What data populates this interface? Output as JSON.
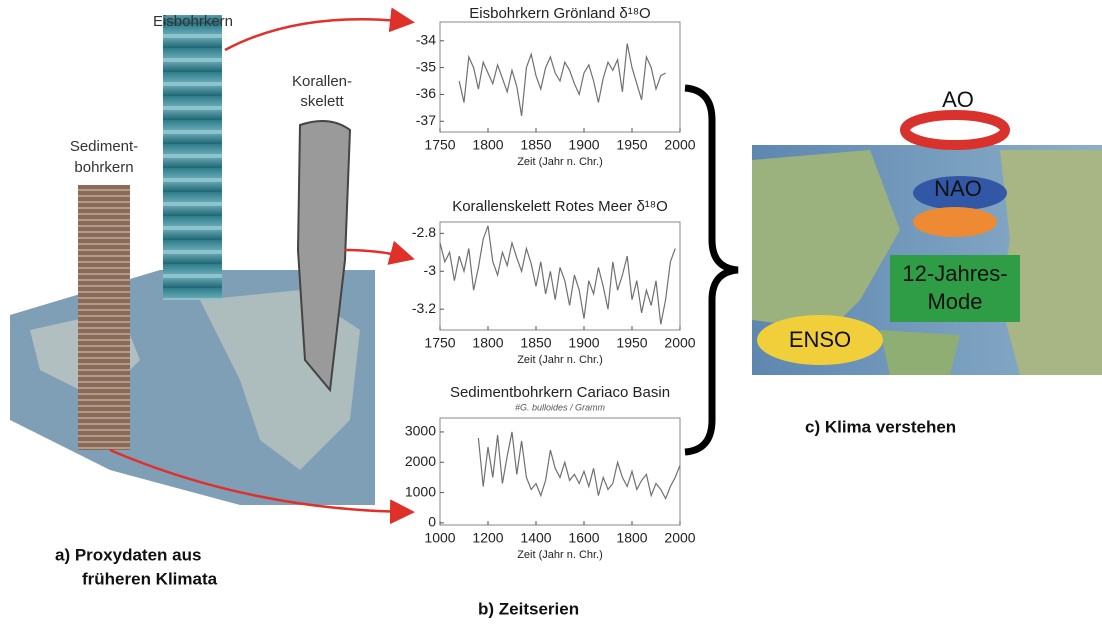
{
  "chart_data": [
    {
      "type": "line",
      "title": "Eisbohrkern Grönland δ¹⁸O",
      "x_label": "Zeit (Jahr n. Chr.)",
      "xlim": [
        1750,
        2000
      ],
      "xticks": [
        1750,
        1800,
        1850,
        1900,
        1950,
        2000
      ],
      "ylim": [
        -37.4,
        -33.3
      ],
      "yticks": [
        -37,
        -36,
        -35,
        -34
      ],
      "series": [
        {
          "color": "#707070",
          "x": [
            1770,
            1775,
            1780,
            1785,
            1790,
            1795,
            1800,
            1805,
            1810,
            1815,
            1820,
            1825,
            1830,
            1835,
            1840,
            1845,
            1850,
            1855,
            1860,
            1865,
            1870,
            1875,
            1880,
            1885,
            1890,
            1895,
            1900,
            1905,
            1910,
            1915,
            1920,
            1925,
            1930,
            1935,
            1940,
            1945,
            1950,
            1955,
            1960,
            1965,
            1970,
            1975,
            1980,
            1985
          ],
          "values": [
            -35.5,
            -36.3,
            -34.6,
            -35.0,
            -35.8,
            -34.8,
            -35.2,
            -35.6,
            -34.9,
            -35.4,
            -35.9,
            -35.1,
            -35.7,
            -36.8,
            -35.0,
            -34.5,
            -35.3,
            -35.8,
            -35.0,
            -34.6,
            -35.2,
            -35.5,
            -34.8,
            -35.1,
            -35.6,
            -36.0,
            -35.2,
            -34.9,
            -35.5,
            -36.3,
            -35.4,
            -34.8,
            -35.1,
            -34.7,
            -35.9,
            -34.1,
            -35.0,
            -35.6,
            -36.2,
            -34.6,
            -35.0,
            -35.8,
            -35.3,
            -35.2
          ]
        }
      ]
    },
    {
      "type": "line",
      "title": "Korallenskelett Rotes Meer δ¹⁸O",
      "x_label": "Zeit (Jahr n. Chr.)",
      "xlim": [
        1750,
        2000
      ],
      "xticks": [
        1750,
        1800,
        1850,
        1900,
        1950,
        2000
      ],
      "ylim": [
        -3.31,
        -2.74
      ],
      "yticks": [
        -3.2,
        -3,
        -2.8
      ],
      "series": [
        {
          "color": "#707070",
          "x": [
            1750,
            1755,
            1760,
            1765,
            1770,
            1775,
            1780,
            1785,
            1790,
            1795,
            1800,
            1805,
            1810,
            1815,
            1820,
            1825,
            1830,
            1835,
            1840,
            1845,
            1850,
            1855,
            1860,
            1865,
            1870,
            1875,
            1880,
            1885,
            1890,
            1895,
            1900,
            1905,
            1910,
            1915,
            1920,
            1925,
            1930,
            1935,
            1940,
            1945,
            1950,
            1955,
            1960,
            1965,
            1970,
            1975,
            1980,
            1985,
            1990,
            1995
          ],
          "values": [
            -2.85,
            -2.95,
            -2.9,
            -3.05,
            -2.92,
            -3.0,
            -2.88,
            -3.1,
            -2.98,
            -2.83,
            -2.76,
            -2.95,
            -3.02,
            -2.9,
            -2.97,
            -2.85,
            -2.93,
            -3.0,
            -2.88,
            -2.96,
            -3.08,
            -2.95,
            -3.12,
            -3.0,
            -3.15,
            -2.98,
            -3.05,
            -3.18,
            -3.02,
            -3.1,
            -3.25,
            -3.05,
            -3.12,
            -2.98,
            -3.08,
            -3.2,
            -2.95,
            -3.1,
            -3.02,
            -2.92,
            -3.15,
            -3.05,
            -3.22,
            -3.1,
            -3.18,
            -3.05,
            -3.28,
            -3.15,
            -2.95,
            -2.88
          ]
        }
      ]
    },
    {
      "type": "line",
      "title": "Sedimentbohrkern Cariaco Basin",
      "subtitle": "#G. bulloides / Gramm",
      "x_label": "Zeit (Jahr n. Chr.)",
      "xlim": [
        1000,
        2000
      ],
      "xticks": [
        1000,
        1200,
        1400,
        1600,
        1800,
        2000
      ],
      "ylim": [
        -70,
        3460
      ],
      "yticks": [
        0,
        1000,
        2000,
        3000
      ],
      "series": [
        {
          "color": "#707070",
          "x": [
            1160,
            1180,
            1200,
            1220,
            1240,
            1260,
            1280,
            1300,
            1320,
            1340,
            1360,
            1380,
            1400,
            1420,
            1440,
            1460,
            1480,
            1500,
            1520,
            1540,
            1560,
            1580,
            1600,
            1620,
            1640,
            1660,
            1680,
            1700,
            1720,
            1740,
            1760,
            1780,
            1800,
            1820,
            1840,
            1860,
            1880,
            1900,
            1920,
            1940,
            1960,
            1980,
            2000
          ],
          "values": [
            2800,
            1200,
            2500,
            1500,
            2900,
            1300,
            2200,
            3000,
            1600,
            2700,
            1500,
            1100,
            1300,
            900,
            1400,
            2400,
            1800,
            1500,
            2000,
            1400,
            1600,
            1300,
            1700,
            1200,
            1800,
            900,
            1500,
            1100,
            1300,
            2000,
            1500,
            1200,
            1700,
            1100,
            1400,
            1600,
            900,
            1300,
            1100,
            800,
            1200,
            1500,
            1900
          ]
        }
      ]
    }
  ],
  "labels": {
    "eisbohrkern": "Eisbohrkern",
    "korallen": [
      "Korallen-",
      "skelett"
    ],
    "sediment": [
      "Sediment-",
      "bohrkern"
    ],
    "panel_a": [
      "a) Proxydaten aus",
      "früheren Klimata"
    ],
    "panel_b": "b) Zeitserien",
    "panel_c": "c) Klima verstehen",
    "modes": {
      "ao": "AO",
      "nao": "NAO",
      "mode12": [
        "12-Jahres-",
        "Mode"
      ],
      "enso": "ENSO"
    }
  }
}
